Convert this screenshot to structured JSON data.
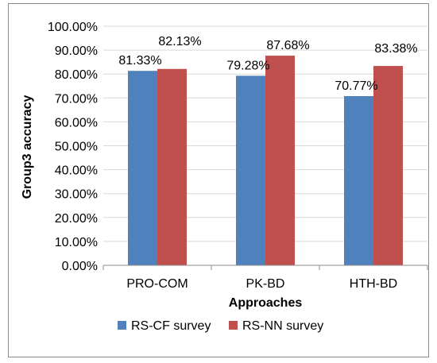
{
  "chart_data": {
    "type": "bar",
    "title": "",
    "xlabel": "Approaches",
    "ylabel": "Group3 accuracy",
    "categories": [
      "PRO-COM",
      "PK-BD",
      "HTH-BD"
    ],
    "series": [
      {
        "name": "RS-CF survey",
        "color": "#4f81bd",
        "values": [
          81.33,
          79.28,
          70.77
        ],
        "labels": [
          "81.33%",
          "79.28%",
          "70.77%"
        ]
      },
      {
        "name": "RS-NN survey",
        "color": "#c0504d",
        "values": [
          82.13,
          87.68,
          83.38
        ],
        "labels": [
          "82.13%",
          "87.68%",
          "83.38%"
        ]
      }
    ],
    "ylim": [
      0,
      100
    ],
    "yticks": [
      0,
      10,
      20,
      30,
      40,
      50,
      60,
      70,
      80,
      90,
      100
    ],
    "ytick_labels": [
      "0.00%",
      "10.00%",
      "20.00%",
      "30.00%",
      "40.00%",
      "50.00%",
      "60.00%",
      "70.00%",
      "80.00%",
      "90.00%",
      "100.00%"
    ],
    "grid": true,
    "legend": "bottom"
  }
}
